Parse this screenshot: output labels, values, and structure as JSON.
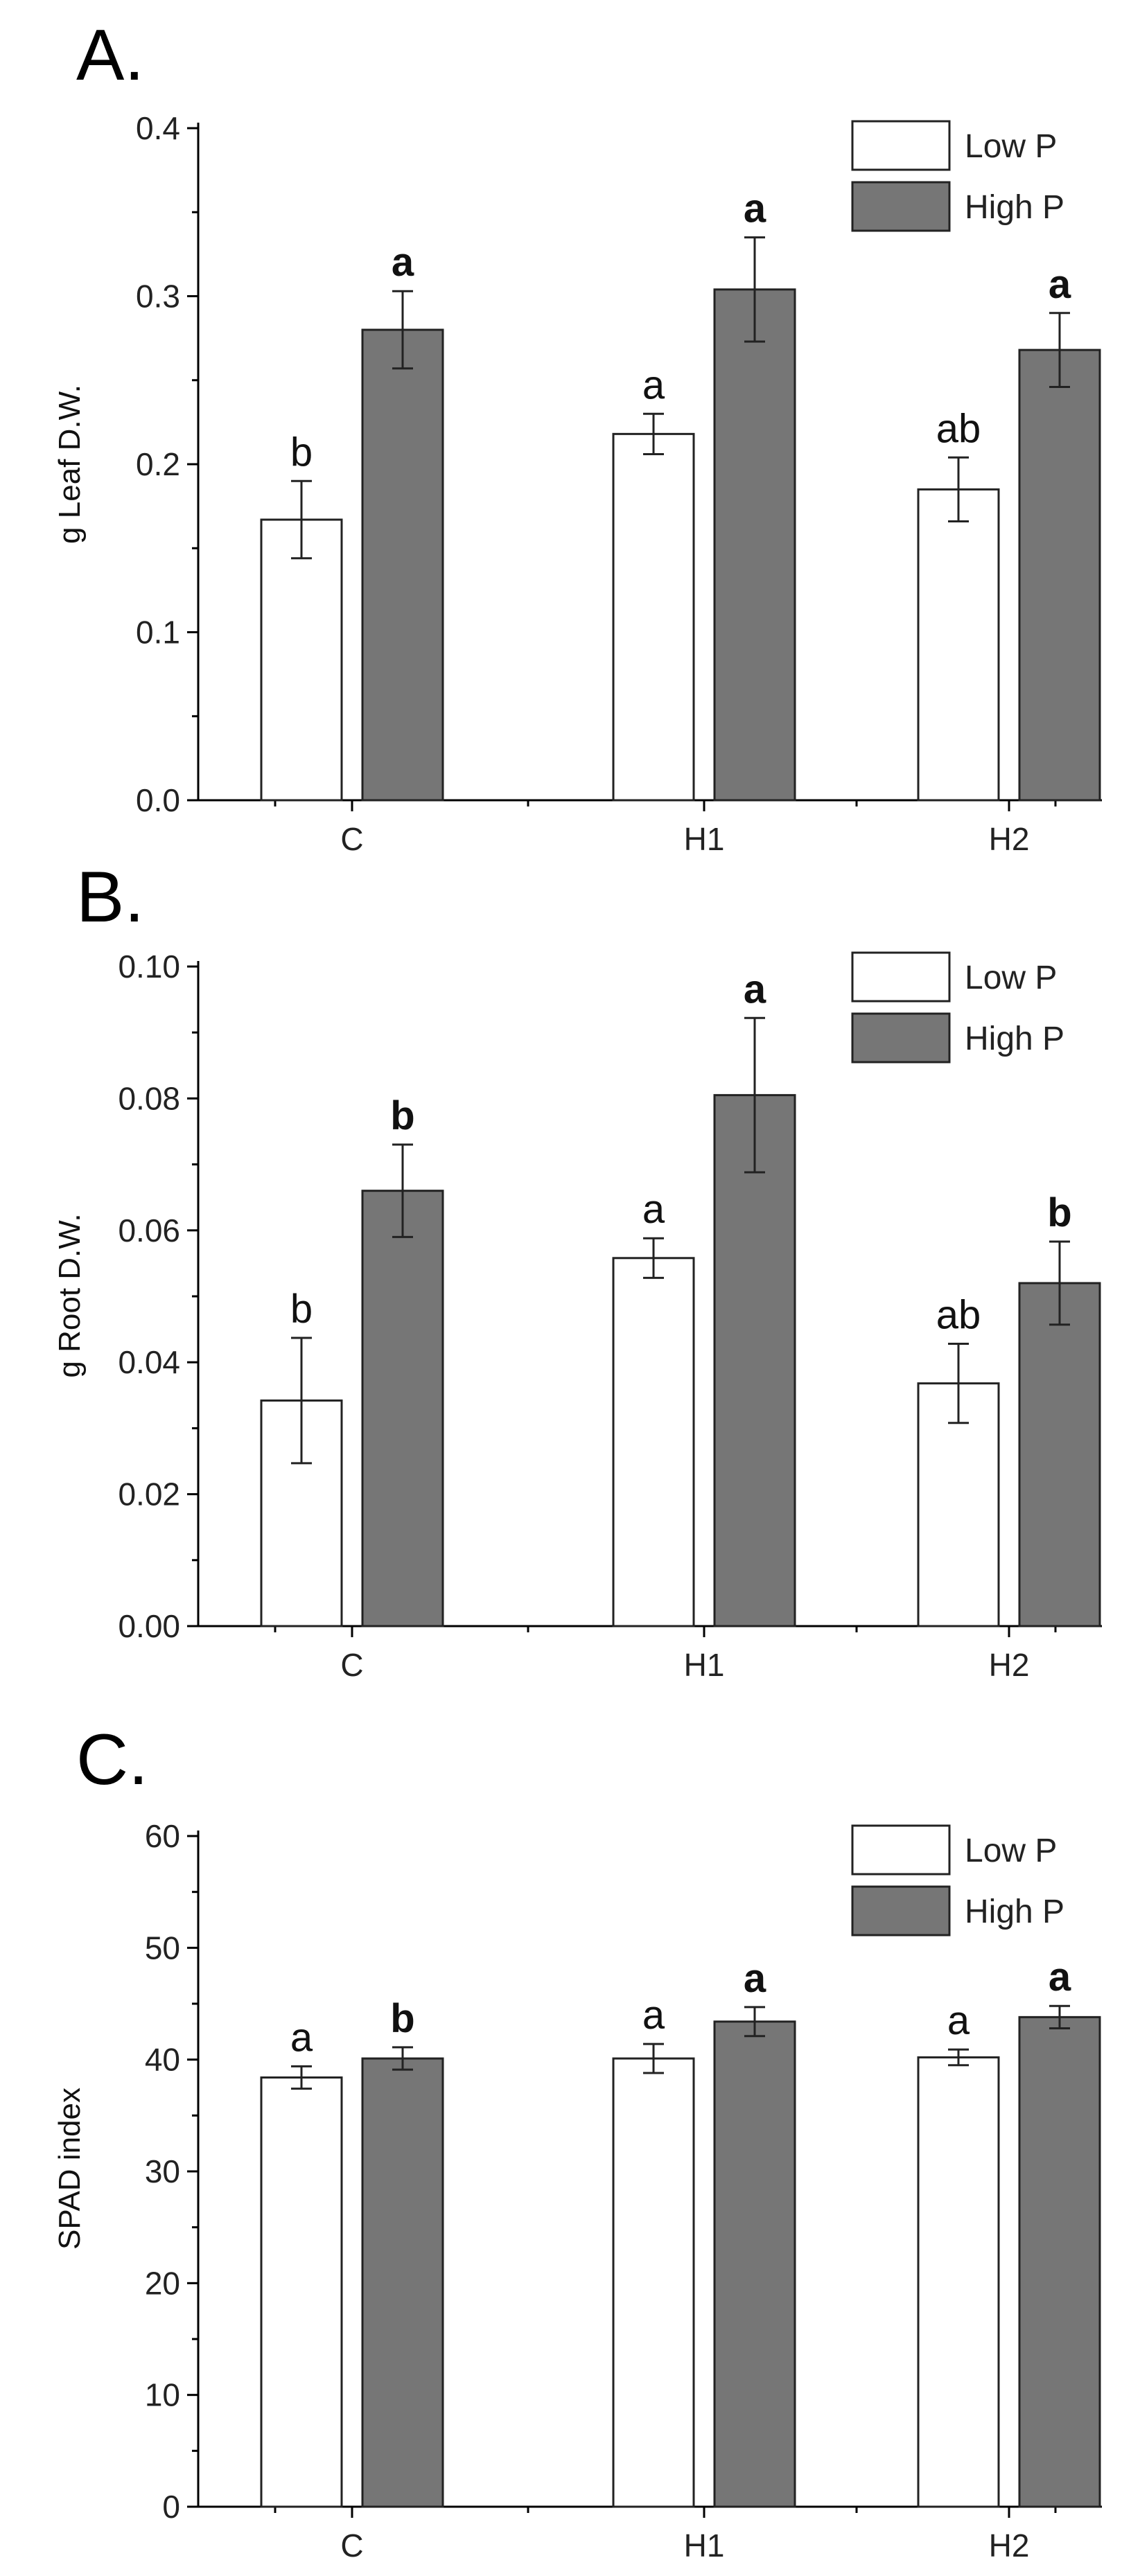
{
  "chart_data": [
    {
      "type": "bar",
      "panel_label": "A.",
      "ylabel": "g Leaf D.W.",
      "xlabel": "",
      "ylim": [
        0,
        0.4
      ],
      "yticks": [
        "0.0",
        "0.1",
        "0.2",
        "0.3",
        "0.4"
      ],
      "ytick_values": [
        0,
        0.1,
        0.2,
        0.3,
        0.4
      ],
      "categories": [
        "C",
        "H1",
        "H2"
      ],
      "legend": {
        "position": "top-right",
        "entries": [
          "Low P",
          "High P"
        ]
      },
      "series": [
        {
          "name": "Low P",
          "color": "#ffffff",
          "values": [
            0.167,
            0.218,
            0.185
          ],
          "errors": [
            0.023,
            0.012,
            0.019
          ],
          "letters": [
            "b",
            "a",
            "ab"
          ]
        },
        {
          "name": "High P",
          "color": "#767676",
          "values": [
            0.28,
            0.304,
            0.268
          ],
          "errors": [
            0.023,
            0.031,
            0.022
          ],
          "letters": [
            "a",
            "a",
            "a"
          ]
        }
      ]
    },
    {
      "type": "bar",
      "panel_label": "B.",
      "ylabel": "g Root D.W.",
      "xlabel": "",
      "ylim": [
        0,
        0.1
      ],
      "yticks": [
        "0.00",
        "0.02",
        "0.04",
        "0.06",
        "0.08",
        "0.10"
      ],
      "ytick_values": [
        0,
        0.02,
        0.04,
        0.06,
        0.08,
        0.1
      ],
      "categories": [
        "C",
        "H1",
        "H2"
      ],
      "legend": {
        "position": "top-right",
        "entries": [
          "Low P",
          "High P"
        ]
      },
      "series": [
        {
          "name": "Low P",
          "color": "#ffffff",
          "values": [
            0.0342,
            0.0558,
            0.0368
          ],
          "errors": [
            0.0095,
            0.003,
            0.006
          ],
          "letters": [
            "b",
            "a",
            "ab"
          ]
        },
        {
          "name": "High P",
          "color": "#767676",
          "values": [
            0.066,
            0.0805,
            0.052
          ],
          "errors": [
            0.007,
            0.0117,
            0.0063
          ],
          "letters": [
            "b",
            "a",
            "b"
          ]
        }
      ]
    },
    {
      "type": "bar",
      "panel_label": "C.",
      "ylabel": "SPAD index",
      "xlabel": "",
      "ylim": [
        0,
        60
      ],
      "yticks": [
        "0",
        "10",
        "20",
        "30",
        "40",
        "50",
        "60"
      ],
      "ytick_values": [
        0,
        10,
        20,
        30,
        40,
        50,
        60
      ],
      "categories": [
        "C",
        "H1",
        "H2"
      ],
      "legend": {
        "position": "top-right",
        "entries": [
          "Low P",
          "High P"
        ]
      },
      "series": [
        {
          "name": "Low P",
          "color": "#ffffff",
          "values": [
            38.4,
            40.1,
            40.2
          ],
          "errors": [
            1.0,
            1.3,
            0.7
          ],
          "letters": [
            "a",
            "a",
            "a"
          ]
        },
        {
          "name": "High P",
          "color": "#767676",
          "values": [
            40.1,
            43.4,
            43.8
          ],
          "errors": [
            1.0,
            1.3,
            1.0
          ],
          "letters": [
            "b",
            "a",
            "a"
          ]
        }
      ]
    }
  ]
}
